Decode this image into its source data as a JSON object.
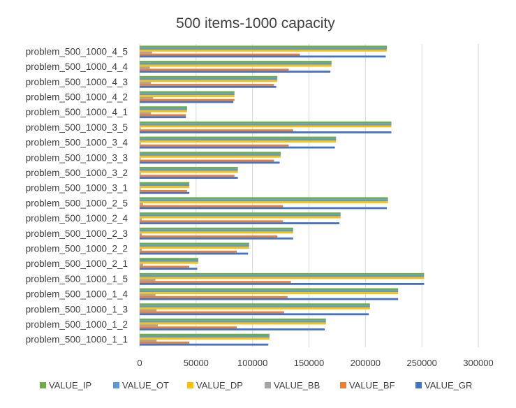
{
  "chart_data": {
    "type": "bar",
    "orientation": "horizontal",
    "title": "500 items-1000 capacity",
    "xlabel": "",
    "ylabel": "",
    "xlim": [
      0,
      300000
    ],
    "x_ticks": [
      0,
      50000,
      100000,
      150000,
      200000,
      250000,
      300000
    ],
    "x_tick_labels": [
      "0",
      "50000",
      "100000",
      "150000",
      "200000",
      "250000",
      "300000"
    ],
    "grid": "vertical",
    "legend_position": "bottom",
    "categories": [
      "problem_500_1000_1_1",
      "problem_500_1000_1_2",
      "problem_500_1000_1_3",
      "problem_500_1000_1_4",
      "problem_500_1000_1_5",
      "problem_500_1000_2_1",
      "problem_500_1000_2_2",
      "problem_500_1000_2_3",
      "problem_500_1000_2_4",
      "problem_500_1000_2_5",
      "problem_500_1000_3_1",
      "problem_500_1000_3_2",
      "problem_500_1000_3_3",
      "problem_500_1000_3_4",
      "problem_500_1000_3_5",
      "problem_500_1000_4_1",
      "problem_500_1000_4_2",
      "problem_500_1000_4_3",
      "problem_500_1000_4_4",
      "problem_500_1000_4_5"
    ],
    "series": [
      {
        "name": "VALUE_IP",
        "color": "#70ad47",
        "values": [
          115000,
          165000,
          204000,
          229000,
          252000,
          52000,
          97000,
          136000,
          178000,
          220000,
          44000,
          87000,
          125000,
          174000,
          223000,
          42000,
          84000,
          122000,
          170000,
          219000
        ]
      },
      {
        "name": "VALUE_OT",
        "color": "#5b9bd5",
        "values": [
          115000,
          165000,
          204000,
          229000,
          252000,
          52000,
          97000,
          136000,
          178000,
          220000,
          44000,
          87000,
          125000,
          174000,
          223000,
          42000,
          84000,
          122000,
          170000,
          219000
        ]
      },
      {
        "name": "VALUE_DP",
        "color": "#ffc000",
        "values": [
          115000,
          165000,
          204000,
          229000,
          252000,
          52000,
          97000,
          136000,
          178000,
          220000,
          44000,
          87000,
          125000,
          174000,
          223000,
          42000,
          84000,
          122000,
          170000,
          219000
        ]
      },
      {
        "name": "VALUE_BB",
        "color": "#a5a5a5",
        "values": [
          15000,
          16000,
          15000,
          14000,
          14000,
          3000,
          2000,
          2000,
          2000,
          3000,
          1000,
          1000,
          1000,
          1000,
          1000,
          10000,
          12000,
          10000,
          9000,
          11000
        ]
      },
      {
        "name": "VALUE_BF",
        "color": "#ed7d31",
        "values": [
          44000,
          86000,
          128000,
          131000,
          134000,
          44000,
          86000,
          122000,
          127000,
          127000,
          42000,
          84000,
          119000,
          132000,
          136000,
          41000,
          84000,
          119000,
          132000,
          142000
        ]
      },
      {
        "name": "VALUE_GR",
        "color": "#4472c4",
        "values": [
          114000,
          164000,
          203000,
          229000,
          252000,
          51000,
          96000,
          136000,
          177000,
          219000,
          44000,
          87000,
          124000,
          173000,
          223000,
          41000,
          83000,
          121000,
          169000,
          218000
        ]
      }
    ]
  }
}
